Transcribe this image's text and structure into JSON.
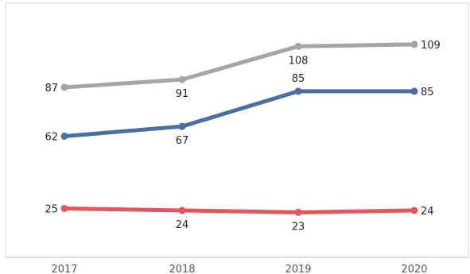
{
  "chart_data": {
    "type": "line",
    "title": "",
    "xlabel": "",
    "ylabel": "",
    "categories": [
      "2017",
      "2018",
      "2019",
      "2020"
    ],
    "ylim": [
      0,
      125
    ],
    "grid": false,
    "legend": "none",
    "series": [
      {
        "color": "#a5a5a5",
        "values": [
          87,
          91,
          108,
          109
        ]
      },
      {
        "color": "#4a6fa5",
        "values": [
          62,
          67,
          85,
          85
        ]
      },
      {
        "color": "#e0575e",
        "values": [
          25,
          24,
          23,
          24
        ]
      }
    ]
  }
}
